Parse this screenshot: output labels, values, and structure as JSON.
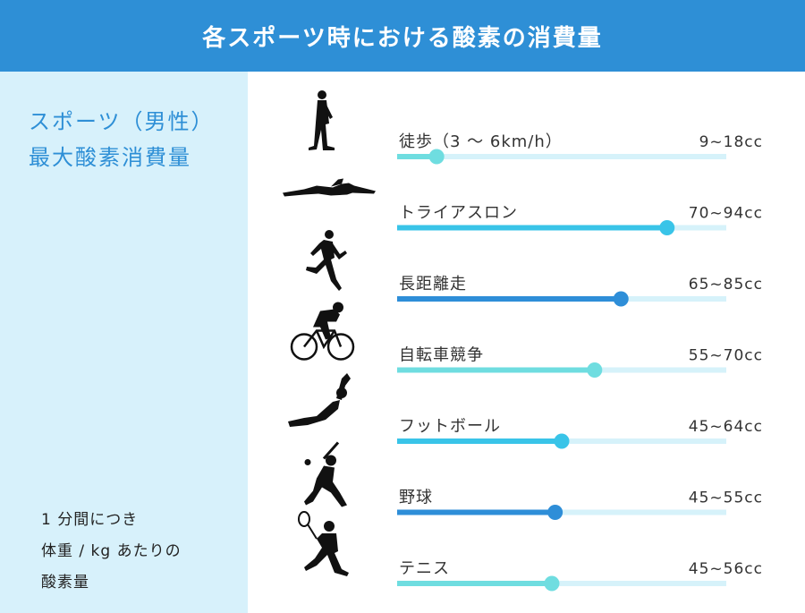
{
  "header": {
    "title": "各スポーツ時における酸素の消費量"
  },
  "sidebar": {
    "heading_lines": [
      "スポーツ（男性）",
      "最大酸素消費量"
    ],
    "note_lines": [
      "1 分間につき",
      "体重 / kg あたりの",
      "酸素量"
    ]
  },
  "colors": {
    "header": "#2e8fd6",
    "sidebar_bg": "#d7f1fb",
    "track": "#d6f2fa",
    "turquoise": "#6fdde0",
    "sky": "#39c4e8",
    "blue": "#2e8ed8"
  },
  "chart_data": {
    "type": "bar",
    "title": "各スポーツ時における酸素の消費量",
    "xlim": [
      0,
      100
    ],
    "grid": false,
    "rows": [
      {
        "label": "徒歩（3 〜 6km/h）",
        "range_label": "9~18cc",
        "value": 12,
        "color": "turquoise",
        "icon": "walking-person-icon"
      },
      {
        "label": "トライアスロン",
        "range_label": "70~94cc",
        "value": 82,
        "color": "sky",
        "icon": "swimmer-icon"
      },
      {
        "label": "長距離走",
        "range_label": "65~85cc",
        "value": 68,
        "color": "blue",
        "icon": "runner-icon"
      },
      {
        "label": "自転車競争",
        "range_label": "55~70cc",
        "value": 60,
        "color": "turquoise",
        "icon": "cyclist-icon"
      },
      {
        "label": "フットボール",
        "range_label": "45~64cc",
        "value": 50,
        "color": "sky",
        "icon": "goalkeeper-icon"
      },
      {
        "label": "野球",
        "range_label": "45~55cc",
        "value": 48,
        "color": "blue",
        "icon": "baseball-batter-icon"
      },
      {
        "label": "テニス",
        "range_label": "45~56cc",
        "value": 47,
        "color": "turquoise",
        "icon": "tennis-player-icon"
      }
    ]
  }
}
